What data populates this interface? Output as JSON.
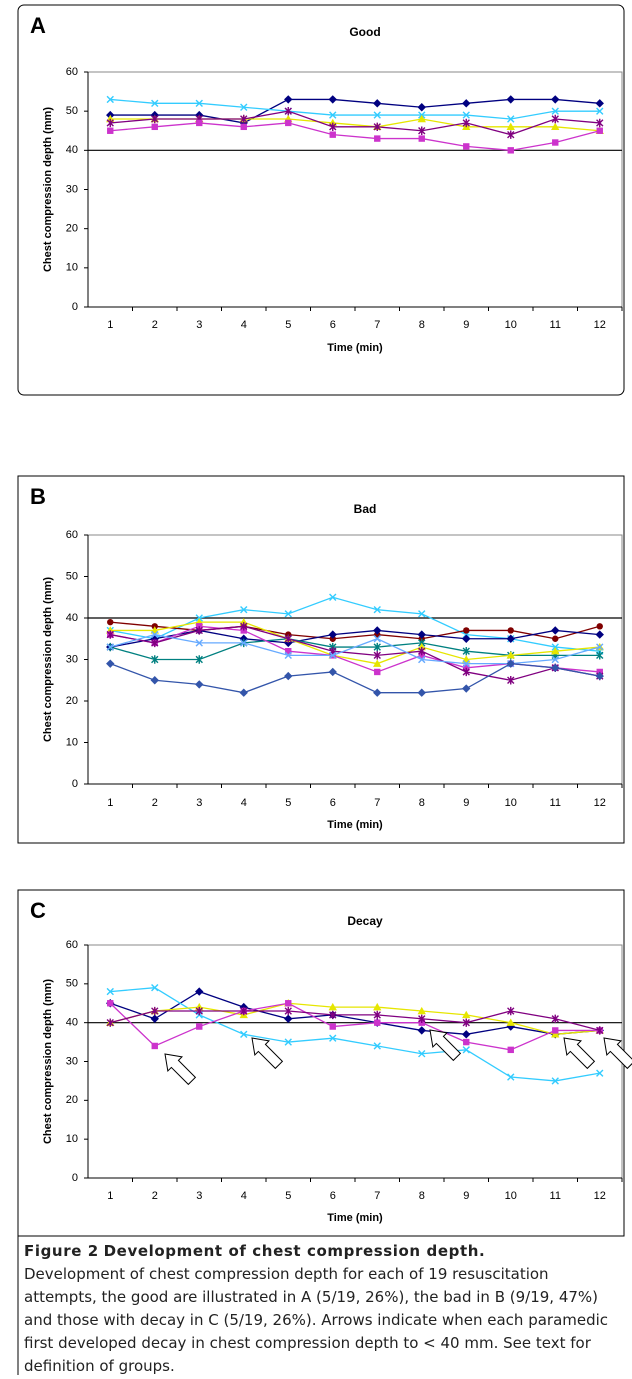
{
  "chart_data": [
    {
      "type": "line",
      "panel": "A",
      "title": "Good",
      "xlabel": "Time (min)",
      "ylabel": "Chest compression depth (mm)",
      "categories": [
        "1",
        "2",
        "3",
        "4",
        "5",
        "6",
        "7",
        "8",
        "9",
        "10",
        "11",
        "12"
      ],
      "ylim": [
        0,
        60
      ],
      "yticks": [
        0,
        10,
        20,
        30,
        40,
        50,
        60
      ],
      "hline": 40,
      "series": [
        {
          "color": "#000080",
          "marker": "diamond",
          "values": [
            49,
            49,
            49,
            47,
            53,
            53,
            52,
            51,
            52,
            53,
            53,
            52
          ]
        },
        {
          "color": "#33ccff",
          "marker": "x",
          "values": [
            53,
            52,
            52,
            51,
            50,
            49,
            49,
            49,
            49,
            48,
            50,
            50
          ]
        },
        {
          "color": "#e6e600",
          "marker": "triangle",
          "values": [
            48,
            48,
            48,
            48,
            48,
            47,
            46,
            48,
            46,
            46,
            46,
            45
          ]
        },
        {
          "color": "#800080",
          "marker": "star",
          "values": [
            47,
            48,
            48,
            48,
            50,
            46,
            46,
            45,
            47,
            44,
            48,
            47
          ]
        },
        {
          "color": "#cc33cc",
          "marker": "square",
          "values": [
            45,
            46,
            47,
            46,
            47,
            44,
            43,
            43,
            41,
            40,
            42,
            45
          ]
        }
      ]
    },
    {
      "type": "line",
      "panel": "B",
      "title": "Bad",
      "xlabel": "Time (min)",
      "ylabel": "Chest compression depth (mm)",
      "categories": [
        "1",
        "2",
        "3",
        "4",
        "5",
        "6",
        "7",
        "8",
        "9",
        "10",
        "11",
        "12"
      ],
      "ylim": [
        0,
        60
      ],
      "yticks": [
        0,
        10,
        20,
        30,
        40,
        50,
        60
      ],
      "hline": 40,
      "series": [
        {
          "color": "#33ccff",
          "marker": "x",
          "values": [
            37,
            35,
            40,
            42,
            41,
            45,
            42,
            41,
            36,
            35,
            33,
            32
          ]
        },
        {
          "color": "#800000",
          "marker": "circle",
          "values": [
            39,
            38,
            37,
            38,
            36,
            35,
            36,
            35,
            37,
            37,
            35,
            38
          ]
        },
        {
          "color": "#000080",
          "marker": "diamond",
          "values": [
            33,
            35,
            37,
            35,
            34,
            36,
            37,
            36,
            35,
            35,
            37,
            36
          ]
        },
        {
          "color": "#008080",
          "marker": "star",
          "values": [
            33,
            30,
            30,
            34,
            35,
            33,
            33,
            34,
            32,
            31,
            31,
            31
          ]
        },
        {
          "color": "#e6e600",
          "marker": "triangle",
          "values": [
            37,
            37,
            39,
            39,
            35,
            31,
            29,
            33,
            30,
            31,
            32,
            33
          ]
        },
        {
          "color": "#cc33cc",
          "marker": "square",
          "values": [
            36,
            34,
            38,
            37,
            32,
            31,
            27,
            31,
            28,
            29,
            28,
            27
          ]
        },
        {
          "color": "#800080",
          "marker": "star",
          "values": [
            36,
            34,
            37,
            38,
            35,
            32,
            31,
            32,
            27,
            25,
            28,
            26
          ]
        },
        {
          "color": "#66aaff",
          "marker": "x",
          "values": [
            33,
            36,
            34,
            34,
            31,
            31,
            35,
            30,
            29,
            29,
            30,
            33
          ]
        },
        {
          "color": "#3355aa",
          "marker": "diamond",
          "values": [
            29,
            25,
            24,
            22,
            26,
            27,
            22,
            22,
            23,
            29,
            28,
            26
          ]
        }
      ]
    },
    {
      "type": "line",
      "panel": "C",
      "title": "Decay",
      "xlabel": "Time (min)",
      "ylabel": "Chest compression depth (mm)",
      "categories": [
        "1",
        "2",
        "3",
        "4",
        "5",
        "6",
        "7",
        "8",
        "9",
        "10",
        "11",
        "12"
      ],
      "ylim": [
        0,
        60
      ],
      "yticks": [
        0,
        10,
        20,
        30,
        40,
        50,
        60
      ],
      "hline": 40,
      "series": [
        {
          "color": "#000080",
          "marker": "diamond",
          "values": [
            45,
            41,
            48,
            44,
            41,
            42,
            40,
            38,
            37,
            39,
            37,
            38
          ]
        },
        {
          "color": "#33ccff",
          "marker": "x",
          "values": [
            48,
            49,
            42,
            37,
            35,
            36,
            34,
            32,
            33,
            26,
            25,
            27
          ]
        },
        {
          "color": "#e6e600",
          "marker": "triangle",
          "values": [
            40,
            43,
            44,
            42,
            45,
            44,
            44,
            43,
            42,
            40,
            37,
            38
          ]
        },
        {
          "color": "#cc33cc",
          "marker": "square",
          "values": [
            45,
            34,
            39,
            43,
            45,
            39,
            40,
            40,
            35,
            33,
            38,
            38
          ]
        },
        {
          "color": "#800080",
          "marker": "star",
          "values": [
            40,
            43,
            43,
            43,
            43,
            42,
            42,
            41,
            40,
            43,
            41,
            38
          ]
        }
      ]
    }
  ],
  "caption": {
    "label": "Figure 2",
    "title": "Development of chest compression depth.",
    "text": "Development of chest compression depth for each of 19 resuscitation attempts, the good are illustrated in A (5/19, 26%), the bad in B (9/19, 47%) and those with decay in C (5/19, 26%). Arrows indicate when each paramedic first developed decay in chest compression depth to < 40 mm. See text for definition of groups."
  }
}
